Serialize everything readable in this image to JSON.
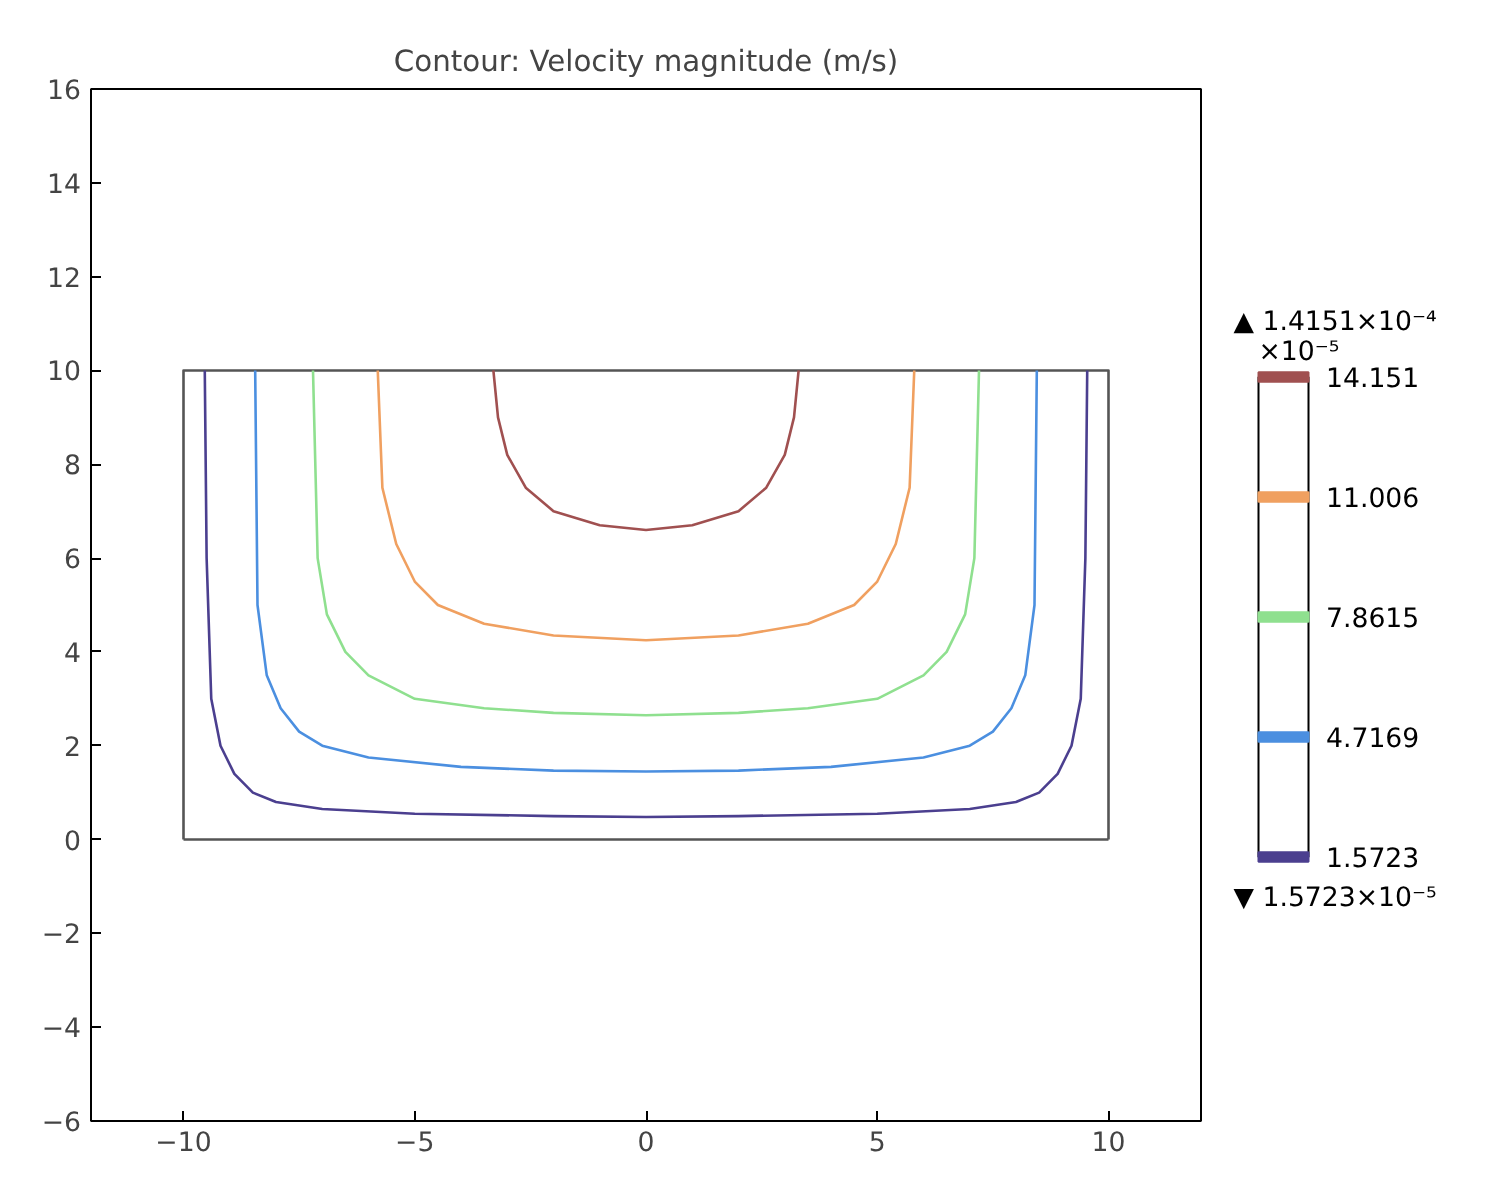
{
  "chart_data": {
    "type": "line",
    "title": "Contour: Velocity magnitude (m/s)",
    "xlim": [
      -12,
      12
    ],
    "ylim": [
      -6,
      16
    ],
    "xticks": [
      -10,
      -5,
      0,
      5,
      10
    ],
    "yticks": [
      -6,
      -4,
      -2,
      0,
      2,
      4,
      6,
      8,
      10,
      12,
      14,
      16
    ],
    "grid": false,
    "legend": "right",
    "annotations": [
      "▲ 1.4151×10⁻⁴",
      "×10⁻⁵",
      "▼ 1.5723×10⁻⁵"
    ],
    "series": [
      {
        "color": "#555555",
        "x": [
          -10,
          -10,
          10,
          10
        ],
        "values": [
          0,
          10,
          10,
          0
        ]
      },
      {
        "color": "#555555",
        "x": [
          -10,
          10
        ],
        "values": [
          0,
          0
        ]
      },
      {
        "name": "1.5723",
        "color": "#4b3f8f",
        "x": [
          -9.54,
          -9.5,
          -9.4,
          -9.2,
          -8.9,
          -8.5,
          -8,
          -7,
          -5,
          -2,
          0,
          2,
          5,
          7,
          8,
          8.5,
          8.9,
          9.2,
          9.4,
          9.5,
          9.54
        ],
        "values": [
          10,
          6,
          3,
          2,
          1.4,
          1.0,
          0.8,
          0.65,
          0.55,
          0.5,
          0.48,
          0.5,
          0.55,
          0.65,
          0.8,
          1.0,
          1.4,
          2,
          3,
          6,
          10
        ]
      },
      {
        "name": "4.7169",
        "color": "#4b8fe0",
        "x": [
          -8.45,
          -8.4,
          -8.2,
          -7.9,
          -7.5,
          -7,
          -6,
          -4,
          -2,
          0,
          2,
          4,
          6,
          7,
          7.5,
          7.9,
          8.2,
          8.4,
          8.45
        ],
        "values": [
          10,
          5,
          3.5,
          2.8,
          2.3,
          2,
          1.75,
          1.55,
          1.47,
          1.45,
          1.47,
          1.55,
          1.75,
          2,
          2.3,
          2.8,
          3.5,
          5,
          10
        ]
      },
      {
        "name": "7.8615",
        "color": "#8fe08f",
        "x": [
          -7.2,
          -7.1,
          -6.9,
          -6.5,
          -6,
          -5,
          -3.5,
          -2,
          0,
          2,
          3.5,
          5,
          6,
          6.5,
          6.9,
          7.1,
          7.2
        ],
        "values": [
          10,
          6,
          4.8,
          4,
          3.5,
          3.0,
          2.8,
          2.7,
          2.65,
          2.7,
          2.8,
          3.0,
          3.5,
          4,
          4.8,
          6,
          10
        ]
      },
      {
        "name": "11.006",
        "color": "#f0a060",
        "x": [
          -5.8,
          -5.7,
          -5.4,
          -5,
          -4.5,
          -3.5,
          -2,
          0,
          2,
          3.5,
          4.5,
          5,
          5.4,
          5.7,
          5.8
        ],
        "values": [
          10,
          7.5,
          6.3,
          5.5,
          5,
          4.6,
          4.35,
          4.25,
          4.35,
          4.6,
          5,
          5.5,
          6.3,
          7.5,
          10
        ]
      },
      {
        "name": "14.151",
        "color": "#a05050",
        "x": [
          -3.3,
          -3.2,
          -3,
          -2.6,
          -2,
          -1,
          0,
          1,
          2,
          2.6,
          3,
          3.2,
          3.3
        ],
        "values": [
          10,
          9,
          8.2,
          7.5,
          7,
          6.7,
          6.6,
          6.7,
          7,
          7.5,
          8.2,
          9,
          10
        ]
      }
    ]
  }
}
